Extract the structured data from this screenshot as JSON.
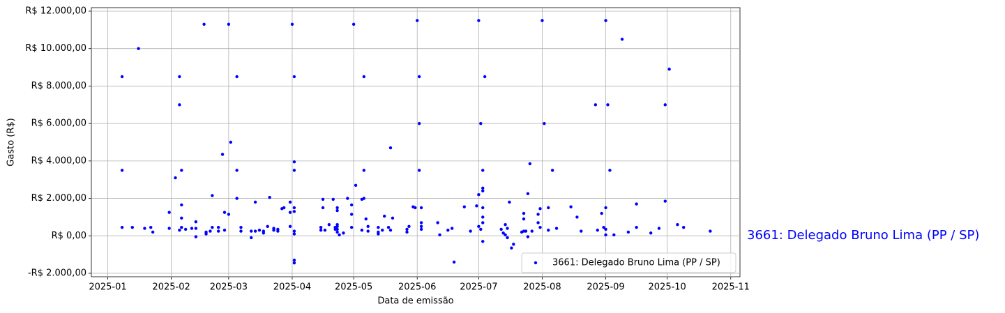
{
  "chart_data": {
    "type": "scatter",
    "x_label": "Data de emissão",
    "y_label": "Gasto (R$)",
    "annotation": "3661: Delegado Bruno Lima (PP / SP)",
    "legend": "lower right",
    "grid": true,
    "xlim": [
      -8,
      308.5
    ],
    "ylim": [
      -2186,
      12186
    ],
    "xticks": [
      {
        "value": 0,
        "label": "2025-01"
      },
      {
        "value": 31,
        "label": "2025-02"
      },
      {
        "value": 59,
        "label": "2025-03"
      },
      {
        "value": 90,
        "label": "2025-04"
      },
      {
        "value": 120,
        "label": "2025-05"
      },
      {
        "value": 151,
        "label": "2025-06"
      },
      {
        "value": 181,
        "label": "2025-07"
      },
      {
        "value": 212,
        "label": "2025-08"
      },
      {
        "value": 243,
        "label": "2025-09"
      },
      {
        "value": 273,
        "label": "2025-10"
      },
      {
        "value": 304,
        "label": "2025-11"
      }
    ],
    "yticks": [
      {
        "value": -2000,
        "label": "-R$ 2.000,00"
      },
      {
        "value": 0,
        "label": "R$ 0,00"
      },
      {
        "value": 2000,
        "label": "R$ 2.000,00"
      },
      {
        "value": 4000,
        "label": "R$ 4.000,00"
      },
      {
        "value": 6000,
        "label": "R$ 6.000,00"
      },
      {
        "value": 8000,
        "label": "R$ 8.000,00"
      },
      {
        "value": 10000,
        "label": "R$ 10.000,00"
      },
      {
        "value": 12000,
        "label": "R$ 12.000,00"
      }
    ],
    "x": [
      7,
      7,
      7,
      12,
      15,
      18,
      21,
      22,
      30,
      30,
      33,
      35,
      35,
      35,
      36,
      36,
      36,
      36,
      38,
      41,
      43,
      43,
      43,
      47,
      48,
      48,
      50,
      51,
      51,
      54,
      54,
      56,
      57,
      57,
      59,
      59,
      60,
      63,
      63,
      63,
      65,
      65,
      70,
      70,
      72,
      72,
      74,
      76,
      76,
      78,
      79,
      81,
      81,
      83,
      83,
      85,
      86,
      89,
      89,
      89,
      90,
      91,
      91,
      91,
      91,
      91,
      91,
      91,
      91,
      91,
      104,
      104,
      105,
      105,
      106,
      108,
      110,
      111,
      111,
      112,
      112,
      112,
      112,
      112,
      112,
      113,
      115,
      117,
      119,
      119,
      119,
      120,
      121,
      124,
      124,
      125,
      125,
      125,
      126,
      127,
      127,
      132,
      132,
      132,
      134,
      135,
      137,
      138,
      138,
      139,
      146,
      146,
      147,
      149,
      150,
      151,
      152,
      152,
      152,
      153,
      153,
      153,
      153,
      161,
      162,
      166,
      168,
      169,
      174,
      177,
      180,
      181,
      181,
      181,
      182,
      182,
      183,
      183,
      183,
      183,
      183,
      183,
      183,
      184,
      192,
      193,
      194,
      194,
      195,
      195,
      196,
      197,
      198,
      202,
      203,
      203,
      203,
      204,
      205,
      205,
      206,
      207,
      210,
      210,
      211,
      211,
      212,
      213,
      215,
      215,
      217,
      219,
      226,
      229,
      231,
      238,
      239,
      241,
      242,
      243,
      243,
      243,
      243,
      244,
      245,
      247,
      251,
      254,
      258,
      258,
      265,
      269,
      272,
      272,
      274,
      278,
      281,
      294
    ],
    "series": [
      {
        "name": "3661: Delegado Bruno Lima (PP / SP)",
        "color": "#0000ff",
        "values": [
          8500,
          3500,
          450,
          450,
          10000,
          400,
          450,
          200,
          1250,
          400,
          3100,
          8500,
          7000,
          300,
          3500,
          1650,
          950,
          450,
          350,
          400,
          750,
          400,
          -50,
          11300,
          200,
          100,
          250,
          2150,
          450,
          450,
          250,
          4350,
          1250,
          300,
          11300,
          1150,
          5000,
          8500,
          3500,
          2000,
          450,
          250,
          250,
          -100,
          1800,
          250,
          300,
          250,
          150,
          500,
          2050,
          400,
          300,
          350,
          250,
          1450,
          1500,
          1800,
          1250,
          500,
          11300,
          8500,
          3950,
          3500,
          1500,
          1300,
          250,
          100,
          -1300,
          -1450,
          450,
          300,
          1950,
          1500,
          300,
          600,
          1950,
          450,
          350,
          1500,
          1350,
          600,
          500,
          350,
          200,
          50,
          150,
          2000,
          1650,
          1150,
          450,
          11300,
          2700,
          1950,
          300,
          8500,
          3500,
          2000,
          900,
          500,
          250,
          450,
          200,
          100,
          300,
          1050,
          450,
          4700,
          300,
          950,
          350,
          200,
          500,
          1550,
          1500,
          11500,
          8500,
          6000,
          3500,
          1500,
          700,
          500,
          350,
          700,
          50,
          300,
          400,
          -1400,
          1550,
          250,
          1600,
          2200,
          500,
          11500,
          6000,
          350,
          1000,
          700,
          -300,
          2400,
          2550,
          3500,
          1500,
          8500,
          350,
          150,
          600,
          50,
          400,
          -100,
          1800,
          -650,
          -450,
          200,
          1200,
          900,
          250,
          250,
          -50,
          2250,
          3850,
          250,
          700,
          1150,
          450,
          1450,
          11500,
          6000,
          1500,
          300,
          3500,
          400,
          1550,
          1000,
          250,
          7000,
          300,
          1200,
          450,
          50,
          350,
          11500,
          1500,
          7000,
          3500,
          50,
          10500,
          200,
          1700,
          450,
          150,
          400,
          7000,
          1850,
          8900,
          600,
          450,
          250
        ]
      }
    ]
  }
}
